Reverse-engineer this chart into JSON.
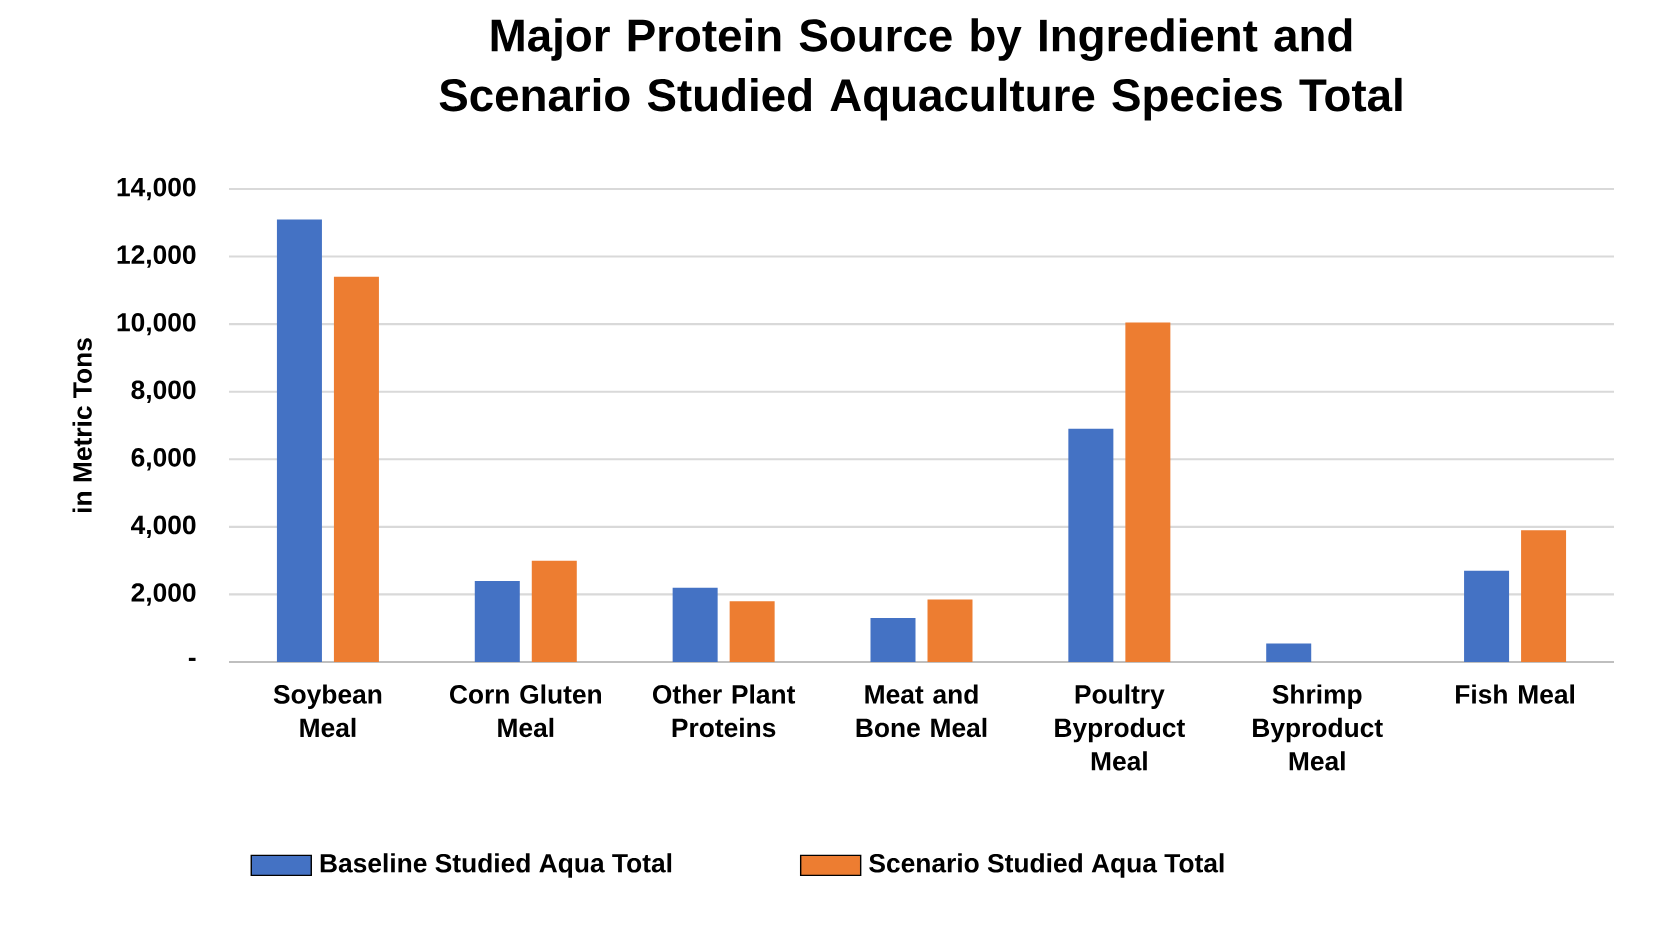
{
  "chart_data": {
    "type": "bar",
    "title": "Major Protein Source by Ingredient and Scenario Studied Aquaculture Species Total",
    "ylabel": "in Metric Tons",
    "categories": [
      "Soybean Meal",
      "Corn Gluten Meal",
      "Other Plant Proteins",
      "Meat and Bone Meal",
      "Poultry Byproduct Meal",
      "Shrimp Byproduct Meal",
      "Fish Meal"
    ],
    "series": [
      {
        "name": "Baseline Studied Aqua Total",
        "color": "#4472c4",
        "values": [
          13100,
          2400,
          2200,
          1300,
          6900,
          550,
          2700
        ]
      },
      {
        "name": "Scenario Studied Aqua Total",
        "color": "#ed7d31",
        "values": [
          11400,
          3000,
          1800,
          1850,
          10050,
          0,
          3900
        ]
      }
    ],
    "ylim": [
      0,
      14000
    ],
    "yticks": [
      {
        "value": 0,
        "label": "-"
      },
      {
        "value": 2000,
        "label": "2,000"
      },
      {
        "value": 4000,
        "label": "4,000"
      },
      {
        "value": 6000,
        "label": "6,000"
      },
      {
        "value": 8000,
        "label": "8,000"
      },
      {
        "value": 10000,
        "label": "10,000"
      },
      {
        "value": 12000,
        "label": "12,000"
      },
      {
        "value": 14000,
        "label": "14,000"
      }
    ],
    "grid": "y",
    "legend": "bottom"
  }
}
